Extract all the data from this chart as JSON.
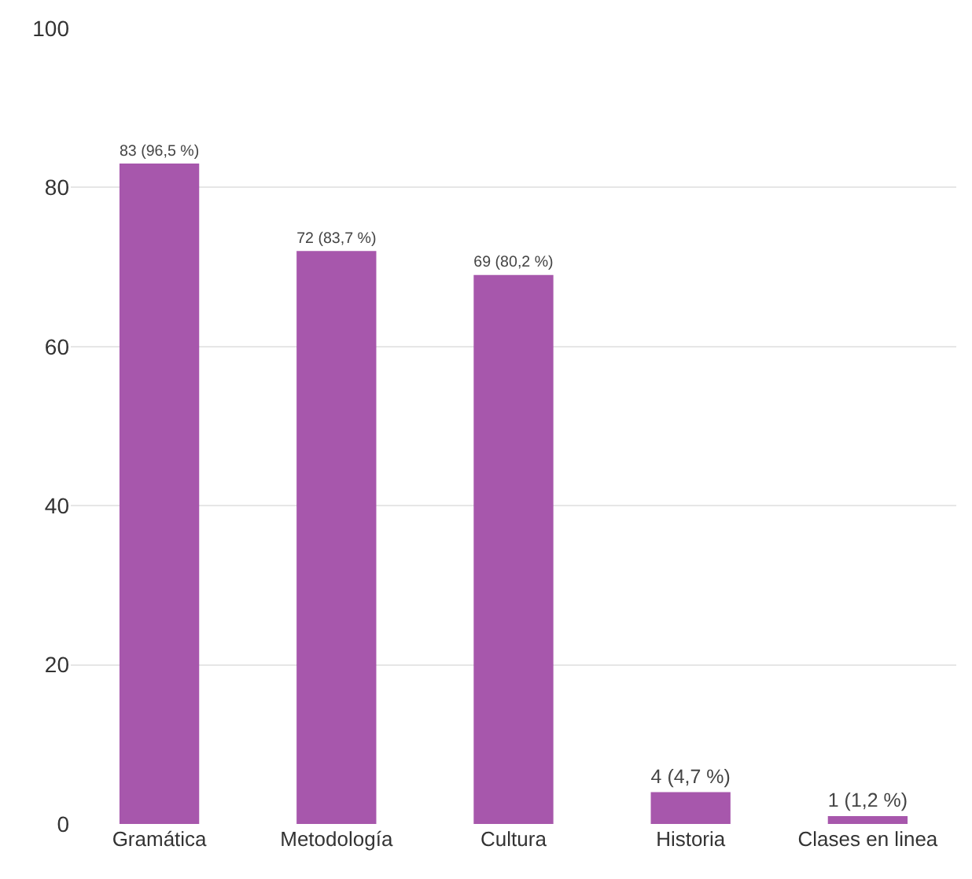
{
  "chart_data": {
    "type": "bar",
    "categories": [
      "Gramática",
      "Metodología",
      "Cultura",
      "Historia",
      "Clases en linea"
    ],
    "values": [
      83,
      72,
      69,
      4,
      1
    ],
    "value_labels": [
      "83 (96,5 %)",
      "72 (83,7 %)",
      "69 (80,2 %)",
      "4 (4,7 %)",
      "1 (1,2 %)"
    ],
    "color": "#a757ac",
    "ylim": [
      0,
      100
    ],
    "yticks": [
      0,
      20,
      40,
      60,
      80,
      100
    ],
    "grid": "y",
    "legend": false
  }
}
